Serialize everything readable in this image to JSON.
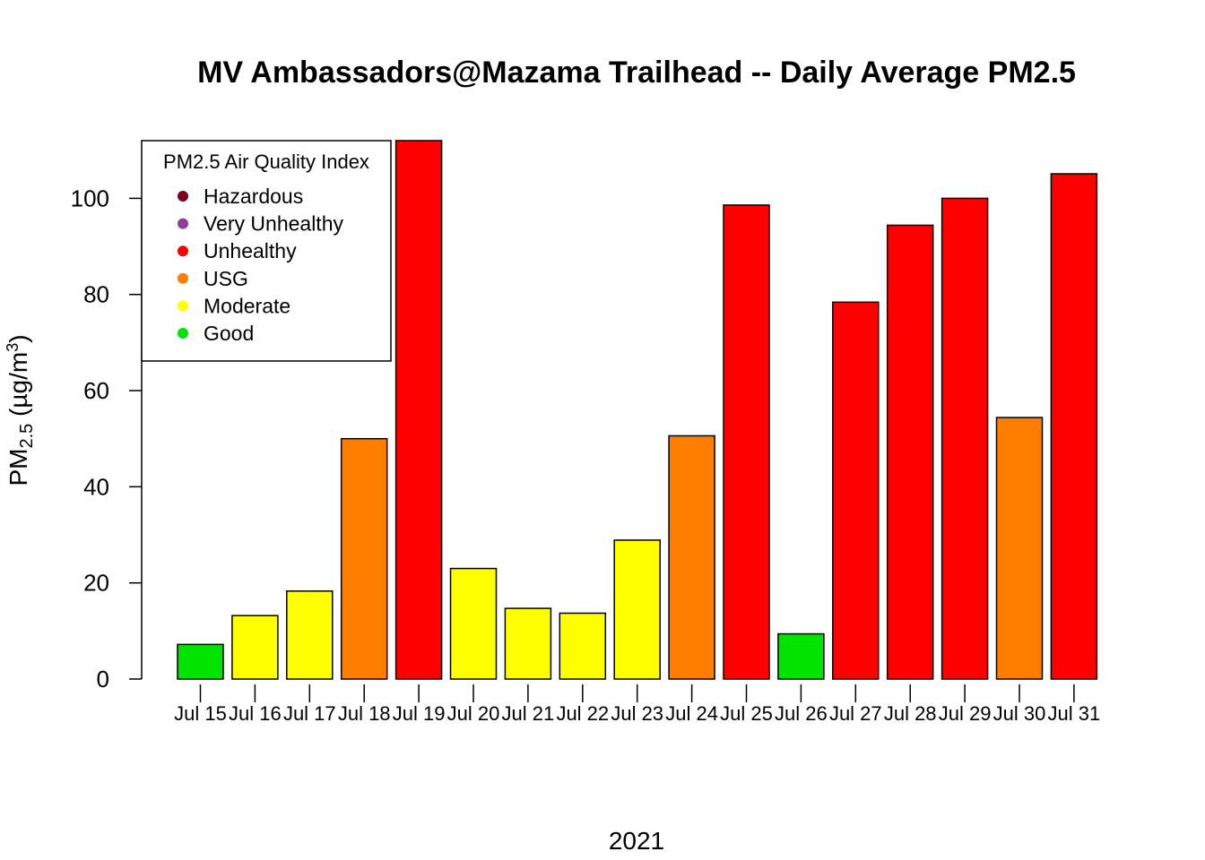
{
  "chart_data": {
    "type": "bar",
    "title": "MV Ambassadors@Mazama Trailhead -- Daily Average PM2.5",
    "ylabel": {
      "main": "PM",
      "sub": "2.5",
      "unit_prefix": " (",
      "unit_mu": "µ",
      "unit_mid": "g/m",
      "unit_sup": "3",
      "unit_suffix": ")"
    },
    "xlabel": "2021",
    "ylim": [
      0,
      112
    ],
    "yticks": [
      0,
      20,
      40,
      60,
      80,
      100
    ],
    "ytick_labels": [
      "0",
      "20",
      "40",
      "60",
      "80",
      "100"
    ],
    "categories": [
      "Jul 15",
      "Jul 16",
      "Jul 17",
      "Jul 18",
      "Jul 19",
      "Jul 20",
      "Jul 21",
      "Jul 22",
      "Jul 23",
      "Jul 24",
      "Jul 25",
      "Jul 26",
      "Jul 27",
      "Jul 28",
      "Jul 29",
      "Jul 30",
      "Jul 31"
    ],
    "values": [
      7.2,
      13.2,
      18.3,
      50.0,
      112.0,
      23.0,
      14.7,
      13.7,
      28.9,
      50.6,
      98.6,
      9.4,
      78.4,
      94.4,
      100.0,
      54.4,
      105.1
    ],
    "bar_colors": [
      "#00e400",
      "#ffff00",
      "#ffff00",
      "#ff7e00",
      "#ff0000",
      "#ffff00",
      "#ffff00",
      "#ffff00",
      "#ffff00",
      "#ff7e00",
      "#ff0000",
      "#00e400",
      "#ff0000",
      "#ff0000",
      "#ff0000",
      "#ff7e00",
      "#ff0000"
    ],
    "legend": {
      "title": "PM2.5 Air Quality Index",
      "placement": "top-left",
      "items": [
        {
          "label": "Hazardous",
          "color": "#7e0023"
        },
        {
          "label": "Very Unhealthy",
          "color": "#8f3f97"
        },
        {
          "label": "Unhealthy",
          "color": "#ff0000"
        },
        {
          "label": "USG",
          "color": "#ff7e00"
        },
        {
          "label": "Moderate",
          "color": "#ffff00"
        },
        {
          "label": "Good",
          "color": "#00e400"
        }
      ]
    }
  }
}
